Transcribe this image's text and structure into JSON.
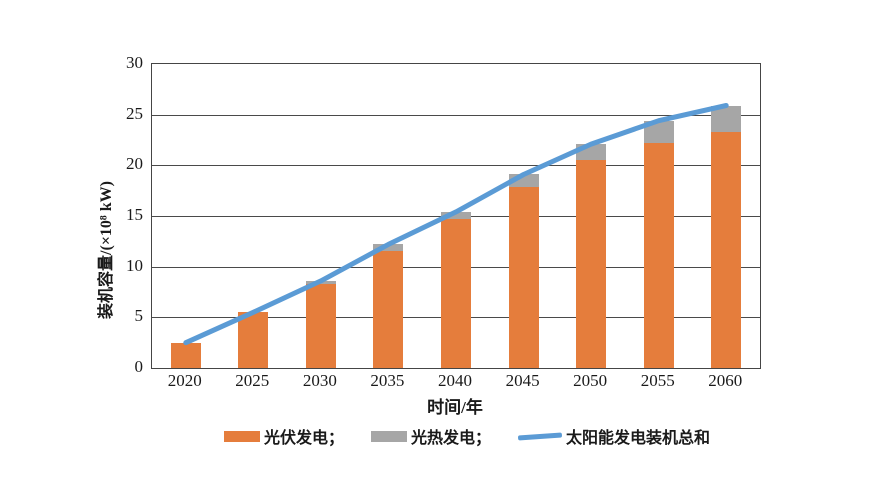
{
  "chart_data": {
    "type": "bar",
    "stacked": true,
    "categories": [
      "2020",
      "2025",
      "2030",
      "2035",
      "2040",
      "2045",
      "2050",
      "2055",
      "2060"
    ],
    "series": [
      {
        "name": "光伏发电",
        "render": "bar",
        "color": "#E57D3C",
        "values": [
          2.5,
          5.5,
          8.3,
          11.6,
          14.7,
          17.9,
          20.5,
          22.2,
          23.3
        ]
      },
      {
        "name": "光热发电",
        "render": "bar",
        "color": "#A6A6A6",
        "values": [
          0,
          0,
          0.3,
          0.6,
          0.7,
          1.2,
          1.6,
          2.2,
          2.6
        ]
      },
      {
        "name": "太阳能发电装机总和",
        "render": "line",
        "color": "#5B9BD5",
        "values": [
          2.5,
          5.5,
          8.6,
          12.2,
          15.4,
          19.1,
          22.1,
          24.4,
          25.9
        ]
      }
    ],
    "title": "",
    "xlabel": "时间/年",
    "ylabel": "装机容量/(×10⁸ kW)",
    "ylim": [
      0,
      30
    ],
    "yticks": [
      0,
      5,
      10,
      15,
      20,
      25,
      30
    ],
    "grid": "horizontal-only",
    "legend_position": "bottom",
    "axis_color": "#454545"
  },
  "legend": {
    "items": [
      {
        "label": "光伏发电；",
        "marker": "swatch",
        "color": "#E57D3C"
      },
      {
        "label": "光热发电；",
        "marker": "swatch",
        "color": "#A6A6A6"
      },
      {
        "label": "太阳能发电装机总和",
        "marker": "line",
        "color": "#5B9BD5"
      }
    ]
  }
}
